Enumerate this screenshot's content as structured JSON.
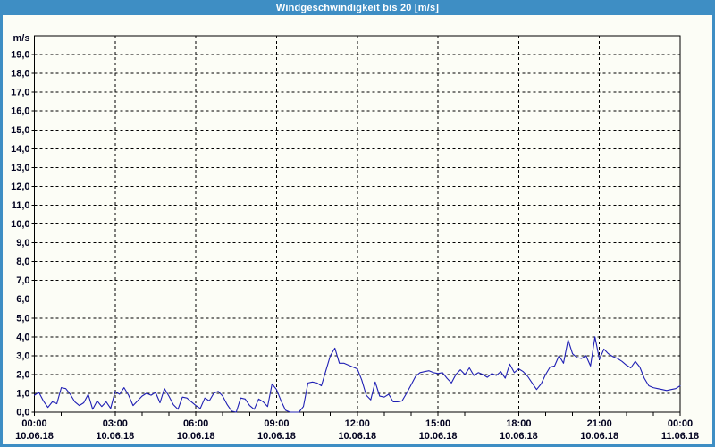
{
  "chart_data": {
    "type": "line",
    "title": "Windgeschwindigkeit bis 20 [m/s]",
    "ylabel": "m/s",
    "ylim": [
      0,
      20
    ],
    "y_tick_step": 1.0,
    "y_labeled_max": 19.0,
    "y_tick_format": "comma-decimal",
    "x_range_hours": [
      0,
      24
    ],
    "x_major_tick_hours": 3,
    "x_minor_tick_hours": 1,
    "grid": "dashed",
    "legend": "none",
    "x_ticks": [
      {
        "time": "00:00",
        "date": "10.06.18"
      },
      {
        "time": "03:00",
        "date": "10.06.18"
      },
      {
        "time": "06:00",
        "date": "10.06.18"
      },
      {
        "time": "09:00",
        "date": "10.06.18"
      },
      {
        "time": "12:00",
        "date": "10.06.18"
      },
      {
        "time": "15:00",
        "date": "10.06.18"
      },
      {
        "time": "18:00",
        "date": "10.06.18"
      },
      {
        "time": "21:00",
        "date": "10.06.18"
      },
      {
        "time": "00:00",
        "date": "11.06.18"
      }
    ],
    "series": [
      {
        "name": "Windgeschwindigkeit",
        "unit": "m/s",
        "color": "#1f1fb4",
        "start": "10.06.18 00:00",
        "interval_minutes": 10,
        "values": [
          0.9,
          1.05,
          0.6,
          0.25,
          0.55,
          0.45,
          1.3,
          1.25,
          0.95,
          0.55,
          0.35,
          0.5,
          0.95,
          0.15,
          0.6,
          0.3,
          0.55,
          0.2,
          1.1,
          0.95,
          1.3,
          0.9,
          0.35,
          0.6,
          0.85,
          1.0,
          0.9,
          1.05,
          0.5,
          1.25,
          0.85,
          0.4,
          0.15,
          0.8,
          0.75,
          0.55,
          0.35,
          0.2,
          0.75,
          0.6,
          1.0,
          1.1,
          0.85,
          0.4,
          0.05,
          0.0,
          0.75,
          0.7,
          0.35,
          0.15,
          0.7,
          0.55,
          0.3,
          1.5,
          1.2,
          0.6,
          0.1,
          0.0,
          0.0,
          0.0,
          0.3,
          1.55,
          1.6,
          1.55,
          1.4,
          2.2,
          3.0,
          3.4,
          2.6,
          2.6,
          2.5,
          2.4,
          2.3,
          1.7,
          0.9,
          0.65,
          1.6,
          0.85,
          0.8,
          0.95,
          0.55,
          0.55,
          0.6,
          1.0,
          1.45,
          1.9,
          2.1,
          2.15,
          2.2,
          2.1,
          2.05,
          2.1,
          1.8,
          1.55,
          2.0,
          2.25,
          2.0,
          2.35,
          1.95,
          2.1,
          2.0,
          1.85,
          2.05,
          1.95,
          2.15,
          1.8,
          2.55,
          2.1,
          2.3,
          2.15,
          1.9,
          1.55,
          1.2,
          1.5,
          2.0,
          2.4,
          2.45,
          3.0,
          2.6,
          3.85,
          3.1,
          2.9,
          2.85,
          3.0,
          2.45,
          4.0,
          2.8,
          3.35,
          3.1,
          2.95,
          2.85,
          2.7,
          2.5,
          2.35,
          2.7,
          2.4,
          1.8,
          1.4,
          1.3,
          1.25,
          1.2,
          1.15,
          1.2,
          1.25,
          1.4
        ]
      }
    ]
  },
  "colors": {
    "frame_blue": "#3e8ec4",
    "background": "#fcfdf6",
    "grid_black": "#000000",
    "label_text": "#00001e",
    "title_text": "#ffffff",
    "line_blue": "#1f1fb4"
  }
}
